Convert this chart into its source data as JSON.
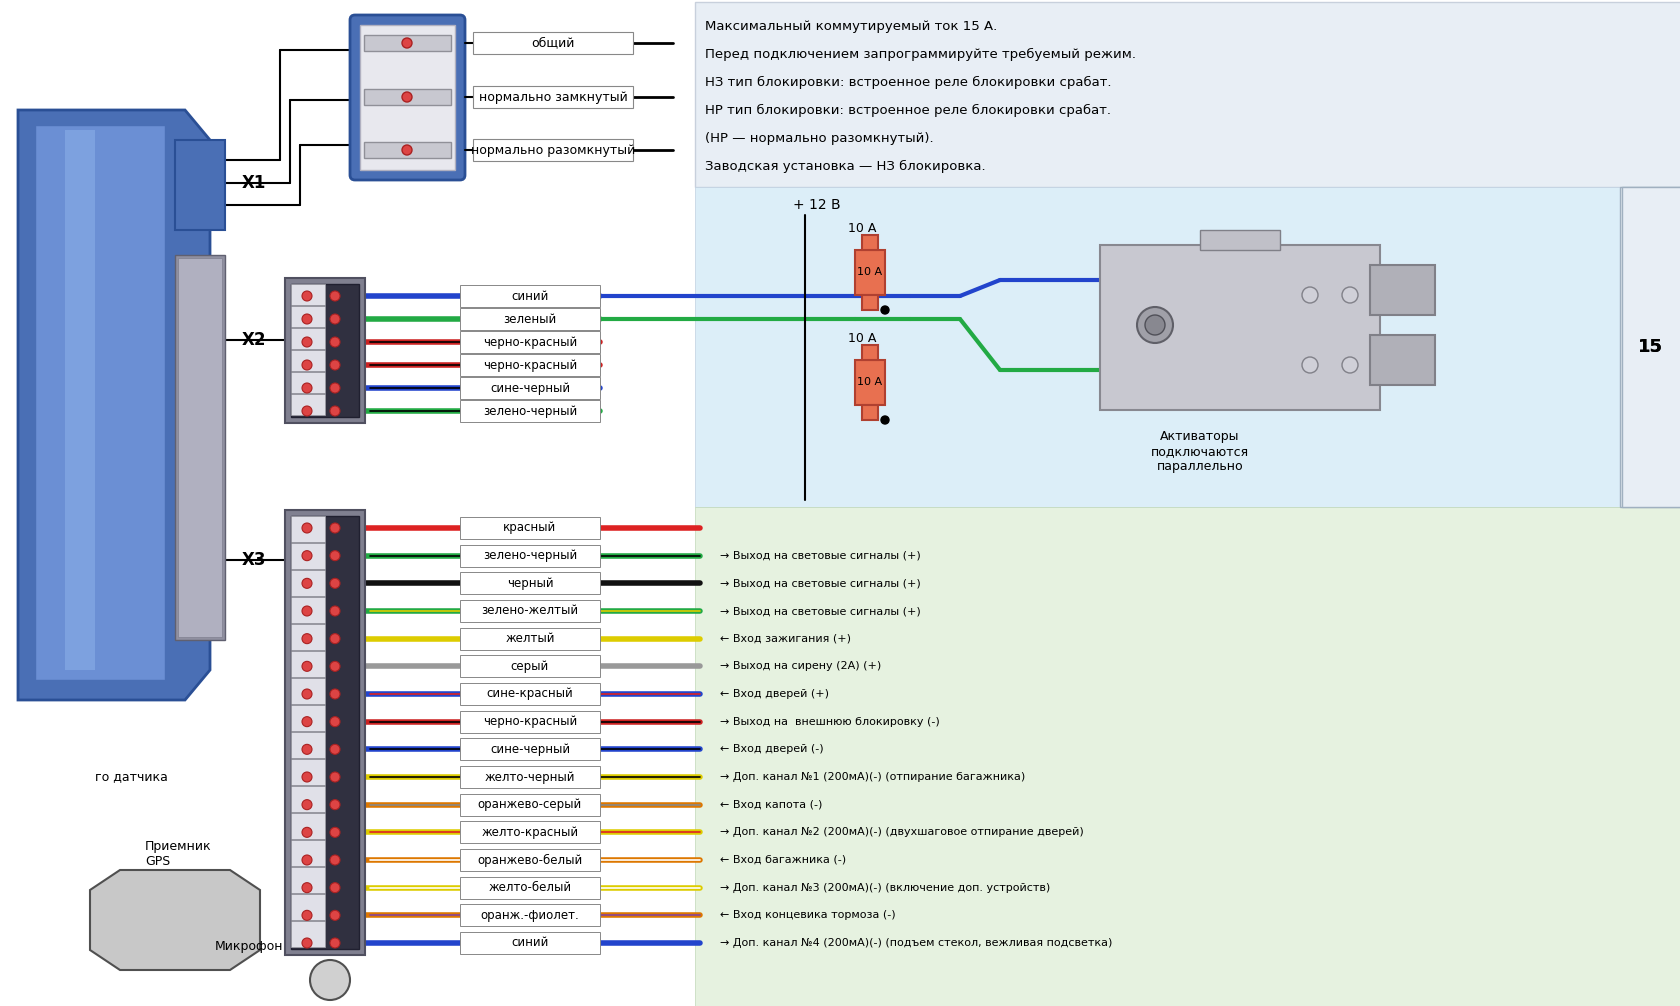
{
  "bg_color": "#ffffff",
  "info_text": [
    "Максимальный коммутируемый ток 15 А.",
    "Перед подключением запрограммируйте требуемый режим.",
    "НЗ тип блокировки: встроенное реле блокировки срабат.",
    "НР тип блокировки: встроенное реле блокировки срабат.",
    "(НР — нормально разомкнутый).",
    "Заводская установка — НЗ блокировка."
  ],
  "relay_labels": [
    "общий",
    "нормально замкнутый",
    "нормально разомкнутый"
  ],
  "x1_label": "X1",
  "x2_label": "X2",
  "x3_label": "X3",
  "plus12_label": "+ 12 В",
  "fuse_label": "10 А",
  "activator_label": "Активаторы\nподключаются\nпараллельно",
  "gps_label": "Приемник\nGPS",
  "mic_label": "Микрофон",
  "sensor_label": "го датчика",
  "x2_wires": [
    {
      "label": "синий",
      "color": "#2244cc",
      "stripe": null
    },
    {
      "label": "зеленый",
      "color": "#22aa44",
      "stripe": null
    },
    {
      "label": "черно-красный",
      "color": "#cc2222",
      "stripe": "black"
    },
    {
      "label": "черно-красный",
      "color": "#cc2222",
      "stripe": "black"
    },
    {
      "label": "сине-черный",
      "color": "#2244cc",
      "stripe": "black"
    },
    {
      "label": "зелено-черный",
      "color": "#22aa44",
      "stripe": "black"
    }
  ],
  "x3_wires": [
    {
      "label": "красный",
      "color": "#dd2222",
      "stripe": null,
      "desc": ""
    },
    {
      "label": "зелено-черный",
      "color": "#22aa44",
      "stripe": "black",
      "desc": "→ Выход на световые сигналы (+)"
    },
    {
      "label": "черный",
      "color": "#111111",
      "stripe": null,
      "desc": "→ Выход на световые сигналы (+)"
    },
    {
      "label": "зелено-желтый",
      "color": "#22aa44",
      "stripe": "yellow",
      "desc": "→ Выход на световые сигналы (+)"
    },
    {
      "label": "желтый",
      "color": "#ddcc00",
      "stripe": null,
      "desc": "← Вход зажигания (+)"
    },
    {
      "label": "серый",
      "color": "#999999",
      "stripe": null,
      "desc": "→ Выход на сирену (2А) (+)"
    },
    {
      "label": "сине-красный",
      "color": "#2244cc",
      "stripe": "red",
      "desc": "← Вход дверей (+)"
    },
    {
      "label": "черно-красный",
      "color": "#cc2222",
      "stripe": "black",
      "desc": "→ Выход на  внешнюю блокировку (-)"
    },
    {
      "label": "сине-черный",
      "color": "#2244cc",
      "stripe": "black",
      "desc": "← Вход дверей (-)"
    },
    {
      "label": "желто-черный",
      "color": "#ddcc00",
      "stripe": "black",
      "desc": "→ Доп. канал №1 (200мА)(-) (отпирание багажника)"
    },
    {
      "label": "оранжево-серый",
      "color": "#dd7700",
      "stripe": "gray",
      "desc": "← Вход капота (-)"
    },
    {
      "label": "желто-красный",
      "color": "#ddcc00",
      "stripe": "red",
      "desc": "→ Доп. канал №2 (200мА)(-) (двухшаговое отпирание дверей)"
    },
    {
      "label": "оранжево-белый",
      "color": "#dd7700",
      "stripe": "white",
      "desc": "← Вход багажника (-)"
    },
    {
      "label": "желто-белый",
      "color": "#ddcc00",
      "stripe": "white",
      "desc": "→ Доп. канал №3 (200мА)(-) (включение доп. устройств)"
    },
    {
      "label": "оранж.-фиолет.",
      "color": "#dd7700",
      "stripe": "purple",
      "desc": "← Вход концевика тормоза (-)"
    },
    {
      "label": "синий",
      "color": "#2244cc",
      "stripe": null,
      "desc": "→ Доп. канал №4 (200мА)(-) (подъем стекол, вежливая подсветка)"
    }
  ]
}
